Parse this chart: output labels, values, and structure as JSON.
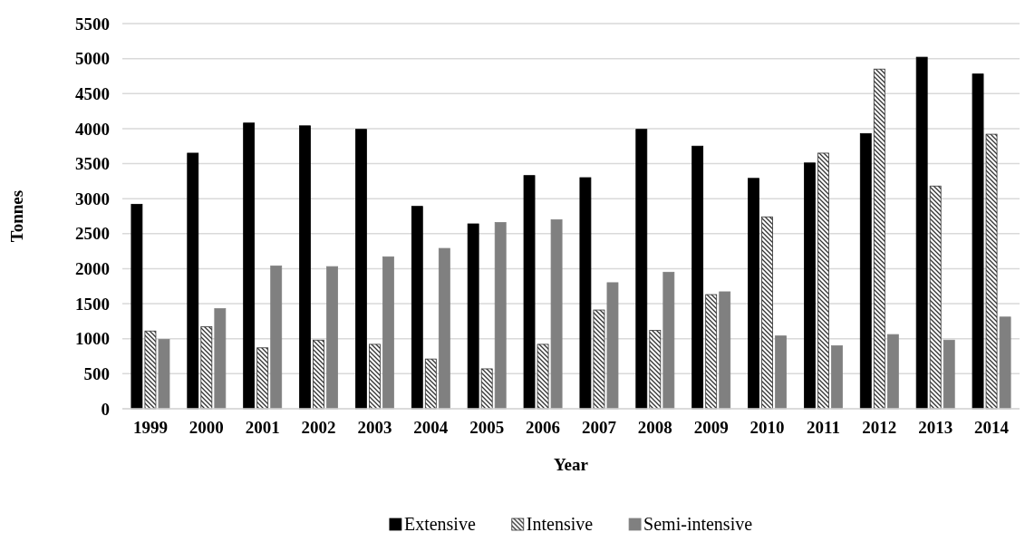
{
  "chart_data": {
    "type": "bar",
    "xlabel": "Year",
    "ylabel": "Tonnes",
    "categories": [
      "1999",
      "2000",
      "2001",
      "2002",
      "2003",
      "2004",
      "2005",
      "2006",
      "2007",
      "2008",
      "2009",
      "2010",
      "2011",
      "2012",
      "2013",
      "2014"
    ],
    "series": [
      {
        "name": "Extensive",
        "color": "#000000",
        "values": [
          2920,
          3650,
          4080,
          4040,
          3990,
          2890,
          2640,
          3330,
          3300,
          3990,
          3750,
          3290,
          3510,
          3930,
          5020,
          4780
        ]
      },
      {
        "name": "Intensive",
        "color": "#333333",
        "values": [
          1110,
          1170,
          870,
          980,
          920,
          710,
          570,
          920,
          1410,
          1120,
          1630,
          2740,
          3650,
          4850,
          3180,
          3920
        ]
      },
      {
        "name": "Semi-intensive",
        "color": "#808080",
        "values": [
          990,
          1430,
          2040,
          2030,
          2170,
          2290,
          2660,
          2700,
          1800,
          1950,
          1670,
          1040,
          900,
          1060,
          980,
          1310
        ]
      }
    ],
    "ylim": [
      0,
      5500
    ],
    "yticks": [
      0,
      500,
      1000,
      1500,
      2000,
      2500,
      3000,
      3500,
      4000,
      4500,
      5000,
      5500
    ],
    "grid": "y",
    "legend": "bottom"
  }
}
